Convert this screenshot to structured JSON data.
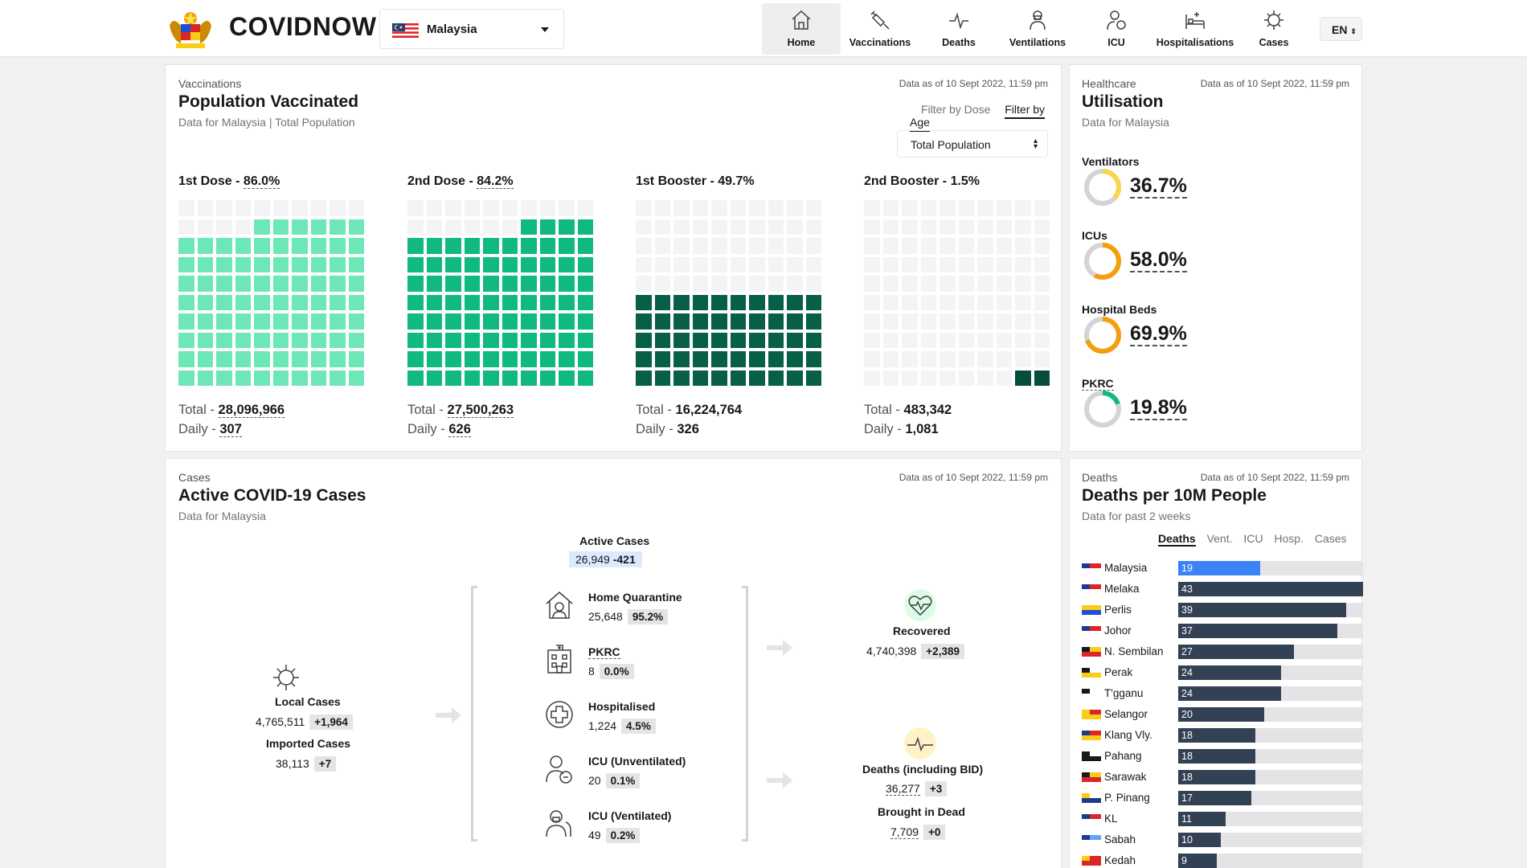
{
  "header": {
    "brand": "COVIDNOW",
    "country": "Malaysia",
    "nav": [
      {
        "label": "Home",
        "icon": "home-icon",
        "active": true
      },
      {
        "label": "Vaccinations",
        "icon": "syringe-icon",
        "active": false
      },
      {
        "label": "Deaths",
        "icon": "pulse-icon",
        "active": false
      },
      {
        "label": "Ventilations",
        "icon": "ventilator-icon",
        "active": false
      },
      {
        "label": "ICU",
        "icon": "icu-icon",
        "active": false
      },
      {
        "label": "Hospitalisations",
        "icon": "hospital-bed-icon",
        "active": false
      },
      {
        "label": "Cases",
        "icon": "virus-icon",
        "active": false
      }
    ],
    "lang": "EN"
  },
  "vax": {
    "eyebrow": "Vaccinations",
    "title": "Population Vaccinated",
    "sub": "Data for Malaysia | Total Population",
    "asof": "Data as of 10 Sept 2022, 11:59 pm",
    "filter_dose": "Filter by Dose",
    "filter_age": "Filter by Age",
    "select": "Total Population",
    "total_label": "Total - ",
    "daily_label": "Daily - ",
    "doses": [
      {
        "label": "1st Dose - ",
        "pct": "86.0%",
        "pct_value": 86.0,
        "total": "28,096,966",
        "daily": "307",
        "color": "#6ee7b7"
      },
      {
        "label": "2nd Dose - ",
        "pct": "84.2%",
        "pct_value": 84.2,
        "total": "27,500,263",
        "daily": "626",
        "color": "#10b981"
      },
      {
        "label": "1st Booster - ",
        "pct": "49.7%",
        "pct_value": 49.7,
        "total": "16,224,764",
        "daily": "326",
        "color": "#065f46"
      },
      {
        "label": "2nd Booster - ",
        "pct": "1.5%",
        "pct_value": 1.5,
        "total": "483,342",
        "daily": "1,081",
        "color": "#064e3b"
      }
    ]
  },
  "util": {
    "eyebrow": "Healthcare",
    "title": "Utilisation",
    "sub": "Data for Malaysia",
    "asof": "Data as of 10 Sept 2022, 11:59 pm",
    "items": [
      {
        "label": "Ventilators",
        "value": "36.7%",
        "frac": 0.367,
        "color": "#fcd34d"
      },
      {
        "label": "ICUs",
        "value": "58.0%",
        "frac": 0.58,
        "color": "#f59e0b"
      },
      {
        "label": "Hospital Beds",
        "value": "69.9%",
        "frac": 0.699,
        "color": "#f59e0b"
      },
      {
        "label": "PKRC",
        "value": "19.8%",
        "frac": 0.198,
        "color": "#10b981"
      }
    ]
  },
  "cases": {
    "eyebrow": "Cases",
    "title": "Active COVID-19 Cases",
    "sub": "Data for Malaysia",
    "asof": "Data as of 10 Sept 2022, 11:59 pm",
    "active_label": "Active Cases",
    "active_value": "26,949",
    "active_delta": "-421",
    "local_label": "Local Cases",
    "local_value": "4,765,511",
    "local_delta": "+1,964",
    "imported_label": "Imported Cases",
    "imported_value": "38,113",
    "imported_delta": "+7",
    "breakdown": [
      {
        "label": "Home Quarantine",
        "value": "25,648",
        "pct": "95.2%",
        "icon": "home-quarantine-icon"
      },
      {
        "label": "PKRC",
        "value": "8",
        "pct": "0.0%",
        "icon": "pkrc-building-icon"
      },
      {
        "label": "Hospitalised",
        "value": "1,224",
        "pct": "4.5%",
        "icon": "hospital-cross-icon"
      },
      {
        "label": "ICU (Unventilated)",
        "value": "20",
        "pct": "0.1%",
        "icon": "icu-patient-icon"
      },
      {
        "label": "ICU (Ventilated)",
        "value": "49",
        "pct": "0.2%",
        "icon": "ventilated-patient-icon"
      }
    ],
    "recovered_label": "Recovered",
    "recovered_value": "4,740,398",
    "recovered_delta": "+2,389",
    "deaths_label": "Deaths (including BID)",
    "deaths_value": "36,277",
    "deaths_delta": "+3",
    "bid_label": "Brought in Dead",
    "bid_value": "7,709",
    "bid_delta": "+0"
  },
  "deaths": {
    "eyebrow": "Deaths",
    "title": "Deaths per 10M People",
    "sub": "Data for past 2 weeks",
    "asof": "Data as of 10 Sept 2022, 11:59 pm",
    "tabs": [
      "Deaths",
      "Vent.",
      "ICU",
      "Hosp.",
      "Cases"
    ],
    "chart_data": {
      "type": "bar",
      "categories": [
        "Malaysia",
        "Melaka",
        "Perlis",
        "Johor",
        "N. Sembilan",
        "Perak",
        "T'gganu",
        "Selangor",
        "Klang Vly.",
        "Pahang",
        "Sarawak",
        "P. Pinang",
        "KL",
        "Sabah",
        "Kedah"
      ],
      "values": [
        19,
        43,
        39,
        37,
        27,
        24,
        24,
        20,
        18,
        18,
        18,
        17,
        11,
        10,
        9
      ]
    }
  }
}
